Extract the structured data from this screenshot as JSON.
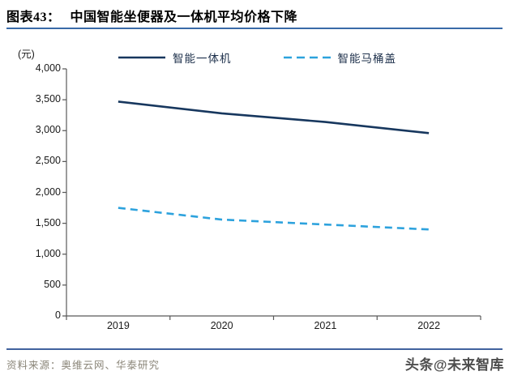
{
  "header": {
    "figure_label": "图表43：",
    "title": "中国智能坐便器及一体机平均价格下降"
  },
  "chart_data": {
    "type": "line",
    "title": "中国智能坐便器及一体机平均价格下降",
    "unit_label": "(元)",
    "categories": [
      "2019",
      "2020",
      "2021",
      "2022"
    ],
    "series": [
      {
        "name": "智能一体机",
        "line_style": "solid",
        "color": "#17375e",
        "values": [
          3470,
          3280,
          3140,
          2960
        ]
      },
      {
        "name": "智能马桶盖",
        "line_style": "dashed",
        "color": "#2da2dd",
        "values": [
          1750,
          1560,
          1480,
          1400
        ]
      }
    ],
    "ylim": [
      0,
      4000
    ],
    "ytick_step": 500,
    "ytick_labels": [
      "4,000",
      "3,500",
      "3,000",
      "2,500",
      "2,000",
      "1,500",
      "1,000",
      "500",
      "0"
    ],
    "xlabel": "",
    "ylabel": "",
    "legend_position": "top",
    "grid": false
  },
  "footer": {
    "source": "资料来源：奥维云网、华泰研究",
    "watermark": "头条@未来智库"
  },
  "colors": {
    "title_rule": "#3a6aa8",
    "footer_rule": "#41629e",
    "axis": "#595959"
  }
}
